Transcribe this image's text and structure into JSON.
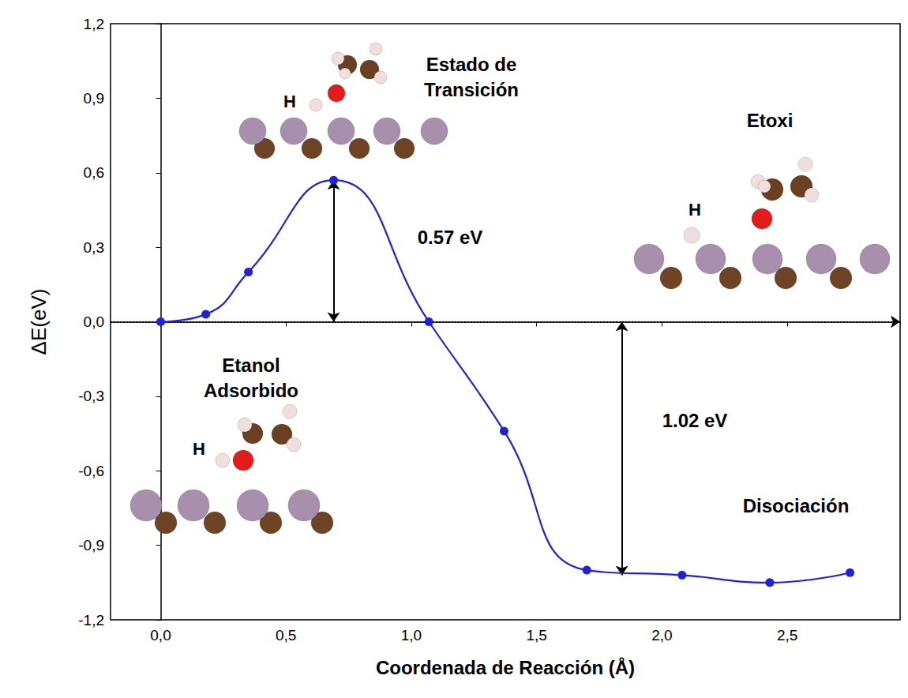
{
  "chart_data": {
    "type": "line",
    "x_label": "Coordenada de Reacción (Å)",
    "y_label": "ΔE(eV)",
    "x": [
      0,
      0.18,
      0.35,
      0.69,
      1.07,
      1.37,
      1.7,
      2.08,
      2.43,
      2.75
    ],
    "values": [
      0,
      0.03,
      0.2,
      0.57,
      0.0,
      -0.44,
      -1.0,
      -1.02,
      -1.05,
      -1.01
    ],
    "color": "#2020e0",
    "marker": "circle",
    "line_style": "solid",
    "grid": false,
    "xlim": [
      -0.2,
      2.95
    ],
    "xticks": [
      {
        "value": 0,
        "label": "0,0"
      },
      {
        "value": 0.5,
        "label": "0,5"
      },
      {
        "value": 1,
        "label": "1,0"
      },
      {
        "value": 1.5,
        "label": "1,5"
      },
      {
        "value": 2,
        "label": "2,0"
      },
      {
        "value": 2.5,
        "label": "2,5"
      }
    ],
    "ylim": [
      -1.2,
      1.2
    ],
    "yticks": [
      {
        "value": -1.2,
        "label": "-1,2"
      },
      {
        "value": -0.9,
        "label": "-0,9"
      },
      {
        "value": -0.6,
        "label": "-0,6"
      },
      {
        "value": -0.3,
        "label": "-0,3"
      },
      {
        "value": 0,
        "label": "0,0"
      },
      {
        "value": 0.3,
        "label": "0,3"
      },
      {
        "value": 0.6,
        "label": "0,6"
      },
      {
        "value": 0.9,
        "label": "0,9"
      },
      {
        "value": 1.2,
        "label": "1,2"
      }
    ],
    "reference_line": {
      "y": 0,
      "line_style": "dotted"
    },
    "arrows": [
      {
        "label": "0.57 eV",
        "x": 0.69,
        "from": 0,
        "to": 0.57
      },
      {
        "label": "1.02 eV",
        "x": 1.84,
        "from": 0,
        "to": -1.02
      }
    ],
    "annotations": [
      "Estado de Transición",
      "Etoxi",
      "Etanol Adsorbido",
      "Disociación",
      "H",
      "H",
      "H"
    ]
  }
}
